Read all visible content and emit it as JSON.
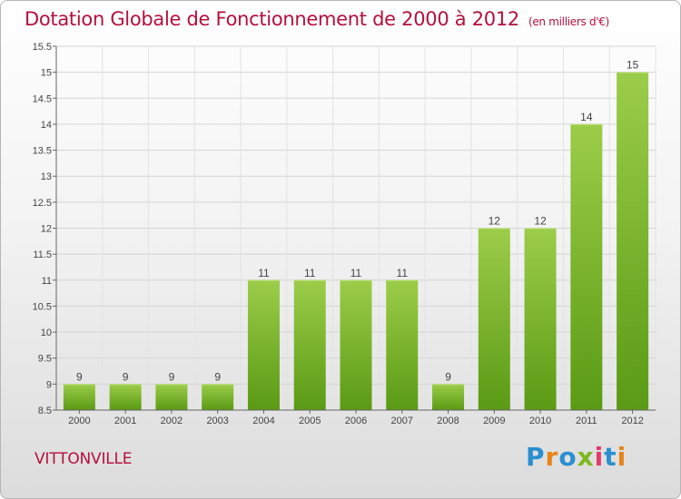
{
  "title": "Dotation Globale de Fonctionnement de 2000 à 2012",
  "unit_note": "(en milliers d'€)",
  "commune": "VITTONVILLE",
  "logo": {
    "letters": [
      "P",
      "r",
      "o",
      "x",
      "i",
      "t",
      "i"
    ],
    "colors": [
      "#2a8fd0",
      "#e8841a",
      "#2a8fd0",
      "#7fb81f",
      "#e23a6c",
      "#2a8fd0",
      "#e8841a"
    ]
  },
  "chart_data": {
    "type": "bar",
    "title": "Dotation Globale de Fonctionnement de 2000 à 2012",
    "categories": [
      "2000",
      "2001",
      "2002",
      "2003",
      "2004",
      "2005",
      "2006",
      "2007",
      "2008",
      "2009",
      "2010",
      "2011",
      "2012"
    ],
    "values": [
      9,
      9,
      9,
      9,
      11,
      11,
      11,
      11,
      9,
      12,
      12,
      14,
      15
    ],
    "ylim": [
      8.5,
      15.5
    ],
    "yticks": [
      "8.5",
      "9",
      "9.5",
      "10",
      "10.5",
      "11",
      "11.5",
      "12",
      "12.5",
      "13",
      "13.5",
      "14",
      "14.5",
      "15",
      "15.5"
    ],
    "grid": true,
    "bar_color_top": "#9ccd4a",
    "bar_color_bottom": "#5a9a14"
  }
}
